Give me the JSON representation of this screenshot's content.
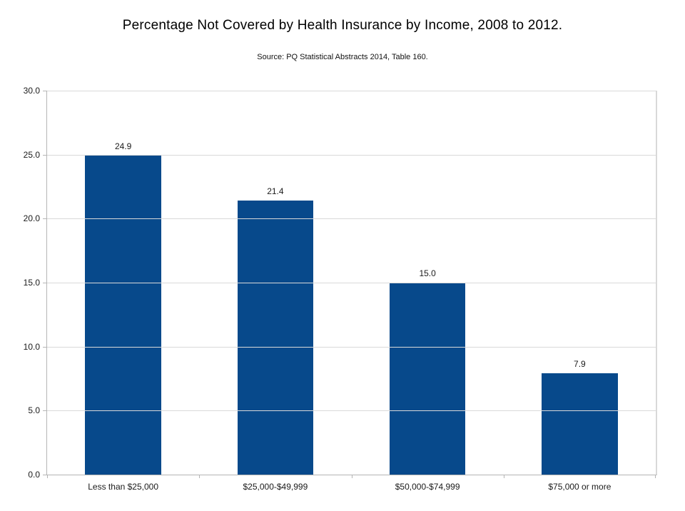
{
  "chart_data": {
    "type": "bar",
    "title": "Percentage Not Covered by Health Insurance by Income, 2008 to 2012.",
    "subtitle": "Source: PQ Statistical Abstracts 2014, Table 160.",
    "categories": [
      "Less than $25,000",
      "$25,000-$49,999",
      "$50,000-$74,999",
      "$75,000 or more"
    ],
    "values": [
      24.9,
      21.4,
      15.0,
      7.9
    ],
    "value_labels": [
      "24.9",
      "21.4",
      "15.0",
      "7.9"
    ],
    "xlabel": "",
    "ylabel": "",
    "ylim": [
      0,
      30
    ],
    "y_ticks": [
      {
        "value": 0,
        "label": "0.0"
      },
      {
        "value": 5,
        "label": "5.0"
      },
      {
        "value": 10,
        "label": "10.0"
      },
      {
        "value": 15,
        "label": "15.0"
      },
      {
        "value": 20,
        "label": "20.0"
      },
      {
        "value": 25,
        "label": "25.0"
      },
      {
        "value": 30,
        "label": "30.0"
      }
    ],
    "grid": "horizontal",
    "legend": "none",
    "colors": {
      "bar": "#07498B",
      "gridline": "#D9D9D9",
      "axis": "#B5B5B5",
      "background": "#FFFFFF"
    }
  }
}
